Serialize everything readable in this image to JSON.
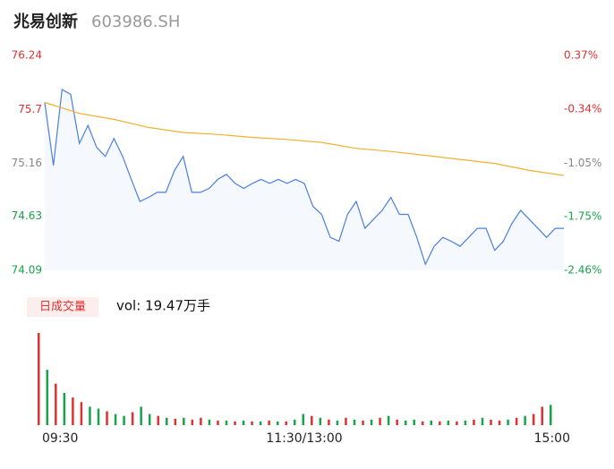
{
  "header": {
    "name": "兆易创新",
    "code": "603986.SH"
  },
  "chart_data": [
    {
      "type": "line",
      "ylim": [
        74.09,
        76.24
      ],
      "yticks": [
        74.09,
        74.63,
        75.16,
        75.7,
        76.24
      ],
      "ytick_colors": [
        "#17a34a",
        "#17a34a",
        "#888888",
        "#e03030",
        "#e03030"
      ],
      "y2lim": [
        -2.46,
        0.37
      ],
      "y2ticks": [
        {
          "value": -2.46,
          "label": "-2.46%"
        },
        {
          "value": -1.75,
          "label": "-1.75%"
        },
        {
          "value": -1.05,
          "label": "-1.05%"
        },
        {
          "value": -0.34,
          "label": "-0.34%"
        },
        {
          "value": 0.37,
          "label": "0.37%"
        }
      ],
      "y2tick_colors": [
        "#17a34a",
        "#17a34a",
        "#888888",
        "#e03030",
        "#e03030"
      ],
      "xlim": [
        0,
        240
      ],
      "series": [
        {
          "name": "price",
          "color": "#4a7fe0",
          "x": [
            0,
            4,
            8,
            12,
            16,
            20,
            24,
            28,
            32,
            36,
            40,
            44,
            48,
            52,
            56,
            60,
            64,
            68,
            72,
            76,
            80,
            84,
            88,
            92,
            96,
            100,
            104,
            108,
            112,
            116,
            120,
            124,
            128,
            132,
            136,
            140,
            144,
            148,
            152,
            156,
            160,
            164,
            168,
            172,
            176,
            180,
            184,
            188,
            192,
            196,
            200,
            204,
            208,
            212,
            216,
            220,
            224,
            228,
            232,
            236,
            240
          ],
          "values": [
            75.77,
            75.14,
            75.9,
            75.85,
            75.36,
            75.54,
            75.32,
            75.23,
            75.41,
            75.23,
            75.0,
            74.78,
            74.82,
            74.87,
            74.87,
            75.09,
            75.23,
            74.87,
            74.87,
            74.91,
            75.0,
            75.05,
            74.96,
            74.91,
            74.96,
            75.0,
            74.96,
            75.0,
            74.96,
            75.0,
            74.96,
            74.73,
            74.65,
            74.42,
            74.38,
            74.65,
            74.78,
            74.51,
            74.6,
            74.69,
            74.82,
            74.65,
            74.65,
            74.42,
            74.15,
            74.33,
            74.42,
            74.38,
            74.33,
            74.42,
            74.51,
            74.51,
            74.29,
            74.38,
            74.56,
            74.69,
            74.6,
            74.51,
            74.42,
            74.51,
            74.51
          ]
        },
        {
          "name": "average",
          "color": "#f0b030",
          "x": [
            0,
            16,
            32,
            48,
            64,
            80,
            96,
            112,
            128,
            144,
            160,
            176,
            192,
            208,
            224,
            240
          ],
          "values": [
            75.77,
            75.66,
            75.6,
            75.52,
            75.47,
            75.45,
            75.42,
            75.4,
            75.37,
            75.31,
            75.28,
            75.24,
            75.2,
            75.16,
            75.09,
            75.04
          ]
        }
      ]
    },
    {
      "type": "bar",
      "label": "日成交量",
      "vol": "vol: 19.47万手",
      "xlim": [
        0,
        240
      ],
      "xticks": [
        {
          "value": 0,
          "label": "09:30"
        },
        {
          "value": 120,
          "label": "11:30/13:00"
        },
        {
          "value": 240,
          "label": "15:00"
        }
      ],
      "x": [
        0,
        4,
        8,
        12,
        16,
        20,
        24,
        28,
        32,
        36,
        40,
        44,
        48,
        52,
        56,
        60,
        64,
        68,
        72,
        76,
        80,
        84,
        88,
        92,
        96,
        100,
        104,
        108,
        112,
        116,
        120,
        124,
        128,
        132,
        136,
        140,
        144,
        148,
        152,
        156,
        160,
        164,
        168,
        172,
        176,
        180,
        184,
        188,
        192,
        196,
        200,
        204,
        208,
        212,
        216,
        220,
        224,
        228,
        232,
        236,
        240
      ],
      "values": [
        100,
        60,
        45,
        35,
        30,
        25,
        20,
        18,
        15,
        12,
        10,
        14,
        20,
        12,
        10,
        8,
        7,
        8,
        6,
        8,
        6,
        5,
        5,
        4,
        5,
        4,
        4,
        5,
        4,
        4,
        6,
        12,
        10,
        8,
        6,
        5,
        8,
        6,
        5,
        6,
        8,
        10,
        6,
        5,
        6,
        4,
        5,
        4,
        5,
        4,
        5,
        6,
        8,
        6,
        5,
        6,
        8,
        10,
        12,
        20,
        22
      ],
      "colors": [
        "#e03030",
        "#17a34a",
        "#e03030",
        "#17a34a",
        "#e03030",
        "#e03030",
        "#17a34a",
        "#17a34a",
        "#e03030",
        "#17a34a",
        "#17a34a",
        "#e03030",
        "#17a34a",
        "#17a34a",
        "#e03030",
        "#17a34a",
        "#e03030",
        "#17a34a",
        "#e03030",
        "#e03030",
        "#17a34a",
        "#e03030",
        "#17a34a",
        "#e03030",
        "#17a34a",
        "#e03030",
        "#17a34a",
        "#e03030",
        "#17a34a",
        "#e03030",
        "#17a34a",
        "#17a34a",
        "#e03030",
        "#17a34a",
        "#e03030",
        "#17a34a",
        "#e03030",
        "#17a34a",
        "#e03030",
        "#17a34a",
        "#e03030",
        "#17a34a",
        "#e03030",
        "#17a34a",
        "#17a34a",
        "#e03030",
        "#17a34a",
        "#e03030",
        "#17a34a",
        "#e03030",
        "#17a34a",
        "#e03030",
        "#17a34a",
        "#e03030",
        "#e03030",
        "#17a34a",
        "#e03030",
        "#17a34a",
        "#e03030",
        "#e03030",
        "#17a34a"
      ]
    }
  ]
}
